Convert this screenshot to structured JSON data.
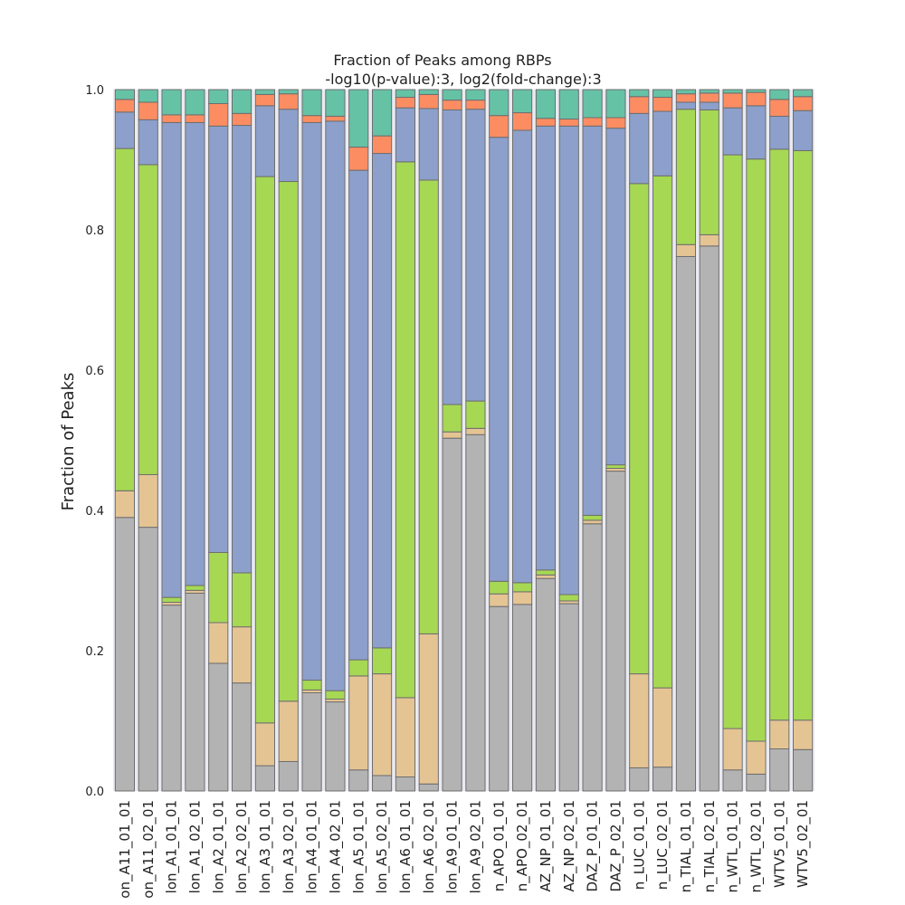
{
  "chart_data": {
    "type": "bar",
    "stacked": true,
    "title": "Fraction of Peaks among RBPs",
    "subtitle": "-log10(p-value):3, log2(fold-change):3",
    "xlabel": "",
    "ylabel": "Fraction of Peaks",
    "ylim": [
      0,
      1.0
    ],
    "yticks": [
      "0.0",
      "0.2",
      "0.4",
      "0.6",
      "0.8",
      "1.0"
    ],
    "grid": false,
    "legend": "none",
    "categories": [
      "on_A11_01_01",
      "on_A11_02_01",
      "lon_A1_01_01",
      "lon_A1_02_01",
      "lon_A2_01_01",
      "lon_A2_02_01",
      "lon_A3_01_01",
      "lon_A3_02_01",
      "lon_A4_01_01",
      "lon_A4_02_01",
      "lon_A5_01_01",
      "lon_A5_02_01",
      "lon_A6_01_01",
      "lon_A6_02_01",
      "lon_A9_01_01",
      "lon_A9_02_01",
      "n_APO_01_01",
      "n_APO_02_01",
      "AZ_NP_01_01",
      "AZ_NP_02_01",
      "DAZ_P_01_01",
      "DAZ_P_02_01",
      "n_LUC_01_01",
      "n_LUC_02_01",
      "n_TIAL_01_01",
      "n_TIAL_02_01",
      "n_WTL_01_01",
      "n_WTL_02_01",
      "WTV5_01_01",
      "WTV5_02_01"
    ],
    "series": [
      {
        "color": "#b3b3b3",
        "values": [
          0.39,
          0.376,
          0.265,
          0.282,
          0.182,
          0.154,
          0.036,
          0.042,
          0.14,
          0.127,
          0.03,
          0.022,
          0.02,
          0.01,
          0.503,
          0.508,
          0.263,
          0.266,
          0.303,
          0.267,
          0.381,
          0.456,
          0.033,
          0.034,
          0.762,
          0.777,
          0.03,
          0.024,
          0.06,
          0.059
        ]
      },
      {
        "color": "#e5c494",
        "values": [
          0.038,
          0.075,
          0.004,
          0.004,
          0.058,
          0.08,
          0.061,
          0.086,
          0.004,
          0.004,
          0.134,
          0.145,
          0.113,
          0.214,
          0.009,
          0.009,
          0.018,
          0.018,
          0.005,
          0.004,
          0.005,
          0.004,
          0.134,
          0.113,
          0.017,
          0.016,
          0.059,
          0.047,
          0.041,
          0.042
        ]
      },
      {
        "color": "#a6d854",
        "values": [
          0.488,
          0.442,
          0.007,
          0.007,
          0.1,
          0.077,
          0.779,
          0.741,
          0.014,
          0.012,
          0.023,
          0.037,
          0.764,
          0.647,
          0.039,
          0.039,
          0.018,
          0.013,
          0.007,
          0.009,
          0.007,
          0.005,
          0.699,
          0.73,
          0.193,
          0.178,
          0.818,
          0.83,
          0.814,
          0.812
        ]
      },
      {
        "color": "#8da0cb",
        "values": [
          0.052,
          0.064,
          0.677,
          0.66,
          0.608,
          0.638,
          0.101,
          0.103,
          0.795,
          0.812,
          0.698,
          0.705,
          0.077,
          0.102,
          0.42,
          0.416,
          0.633,
          0.645,
          0.633,
          0.668,
          0.555,
          0.48,
          0.1,
          0.092,
          0.01,
          0.011,
          0.067,
          0.076,
          0.047,
          0.057
        ]
      },
      {
        "color": "#fc8d62",
        "values": [
          0.018,
          0.025,
          0.011,
          0.011,
          0.032,
          0.017,
          0.016,
          0.022,
          0.01,
          0.007,
          0.033,
          0.025,
          0.015,
          0.02,
          0.014,
          0.013,
          0.031,
          0.025,
          0.011,
          0.01,
          0.012,
          0.015,
          0.024,
          0.02,
          0.012,
          0.013,
          0.021,
          0.019,
          0.024,
          0.02
        ]
      },
      {
        "color": "#66c2a5",
        "values": [
          0.014,
          0.018,
          0.036,
          0.036,
          0.02,
          0.034,
          0.007,
          0.006,
          0.037,
          0.038,
          0.082,
          0.066,
          0.011,
          0.007,
          0.015,
          0.015,
          0.037,
          0.033,
          0.041,
          0.042,
          0.04,
          0.04,
          0.01,
          0.011,
          0.006,
          0.005,
          0.005,
          0.004,
          0.014,
          0.01
        ]
      }
    ]
  }
}
